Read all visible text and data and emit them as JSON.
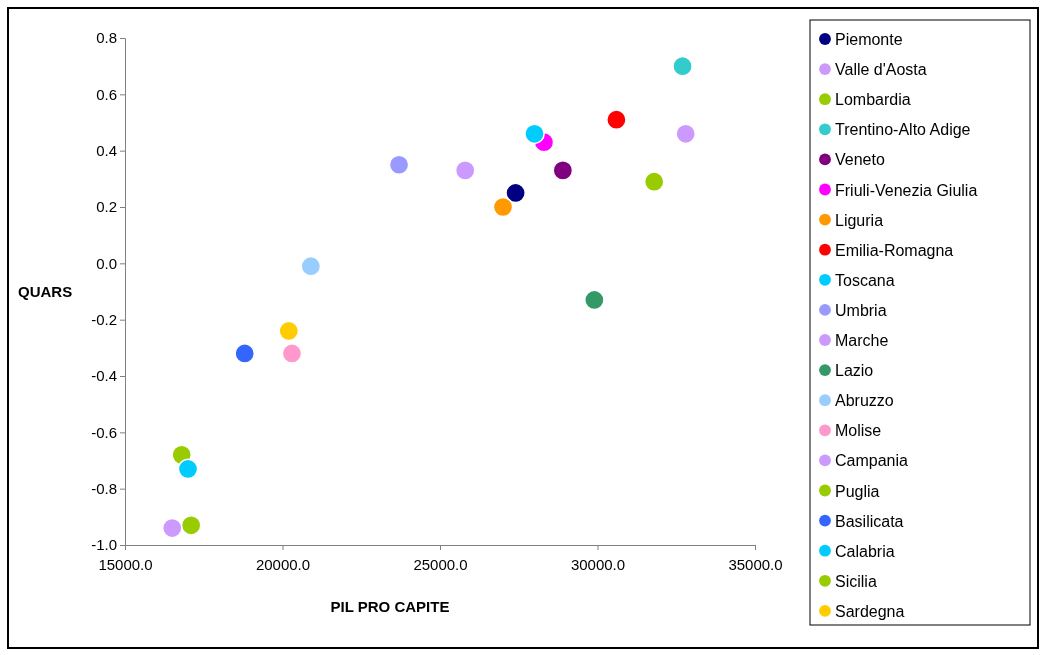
{
  "chart_data": {
    "type": "scatter",
    "xlabel": "PIL PRO CAPITE",
    "ylabel": "QUARS",
    "xlim": [
      15000,
      35000
    ],
    "xticks": [
      {
        "value": 15000,
        "label": "15000.0"
      },
      {
        "value": 20000,
        "label": "20000.0"
      },
      {
        "value": 25000,
        "label": "25000.0"
      },
      {
        "value": 30000,
        "label": "30000.0"
      },
      {
        "value": 35000,
        "label": "35000.0"
      }
    ],
    "ylim": [
      -1,
      0.8
    ],
    "yticks": [
      {
        "value": -1,
        "label": "-1.0"
      },
      {
        "value": -0.8,
        "label": "-0.8"
      },
      {
        "value": -0.6,
        "label": "-0.6"
      },
      {
        "value": -0.4,
        "label": "-0.4"
      },
      {
        "value": -0.2,
        "label": "-0.2"
      },
      {
        "value": 0,
        "label": "0.0"
      },
      {
        "value": 0.2,
        "label": "0.2"
      },
      {
        "value": 0.4,
        "label": "0.4"
      },
      {
        "value": 0.6,
        "label": "0.6"
      },
      {
        "value": 0.8,
        "label": "0.8"
      }
    ],
    "grid": false,
    "legend": "right",
    "marker": "circle",
    "series": [
      {
        "name": "Piemonte",
        "color": "#000080",
        "x": [
          27400
        ],
        "values": [
          0.25
        ]
      },
      {
        "name": "Valle d'Aosta",
        "color": "#cc99ff",
        "x": [
          32800
        ],
        "values": [
          0.46
        ]
      },
      {
        "name": "Lombardia",
        "color": "#99cc00",
        "x": [
          31800
        ],
        "values": [
          0.29
        ]
      },
      {
        "name": "Trentino-Alto Adige",
        "color": "#33cccc",
        "x": [
          32700
        ],
        "values": [
          0.7
        ]
      },
      {
        "name": "Veneto",
        "color": "#800080",
        "x": [
          28900
        ],
        "values": [
          0.33
        ]
      },
      {
        "name": "Friuli-Venezia Giulia",
        "color": "#ff00ff",
        "x": [
          28300
        ],
        "values": [
          0.43
        ]
      },
      {
        "name": "Liguria",
        "color": "#ff9900",
        "x": [
          27000
        ],
        "values": [
          0.2
        ]
      },
      {
        "name": "Emilia-Romagna",
        "color": "#ff0000",
        "x": [
          30600
        ],
        "values": [
          0.51
        ]
      },
      {
        "name": "Toscana",
        "color": "#00ccff",
        "x": [
          28000
        ],
        "values": [
          0.46
        ]
      },
      {
        "name": "Umbria",
        "color": "#9999ff",
        "x": [
          23700
        ],
        "values": [
          0.35
        ]
      },
      {
        "name": "Marche",
        "color": "#cc99ff",
        "x": [
          25800
        ],
        "values": [
          0.33
        ]
      },
      {
        "name": "Lazio",
        "color": "#339966",
        "x": [
          29900
        ],
        "values": [
          -0.13
        ]
      },
      {
        "name": "Abruzzo",
        "color": "#99ccff",
        "x": [
          20900
        ],
        "values": [
          -0.01
        ]
      },
      {
        "name": "Molise",
        "color": "#ff99cc",
        "x": [
          20300
        ],
        "values": [
          -0.32
        ]
      },
      {
        "name": "Campania",
        "color": "#cc99ff",
        "x": [
          16500
        ],
        "values": [
          -0.94
        ]
      },
      {
        "name": "Puglia",
        "color": "#99cc00",
        "x": [
          16800
        ],
        "values": [
          -0.68
        ]
      },
      {
        "name": "Basilicata",
        "color": "#3366ff",
        "x": [
          18800
        ],
        "values": [
          -0.32
        ]
      },
      {
        "name": "Calabria",
        "color": "#00ccff",
        "x": [
          17000
        ],
        "values": [
          -0.73
        ]
      },
      {
        "name": "Sicilia",
        "color": "#99cc00",
        "x": [
          17100
        ],
        "values": [
          -0.93
        ]
      },
      {
        "name": "Sardegna",
        "color": "#ffcc00",
        "x": [
          20200
        ],
        "values": [
          -0.24
        ]
      }
    ]
  }
}
